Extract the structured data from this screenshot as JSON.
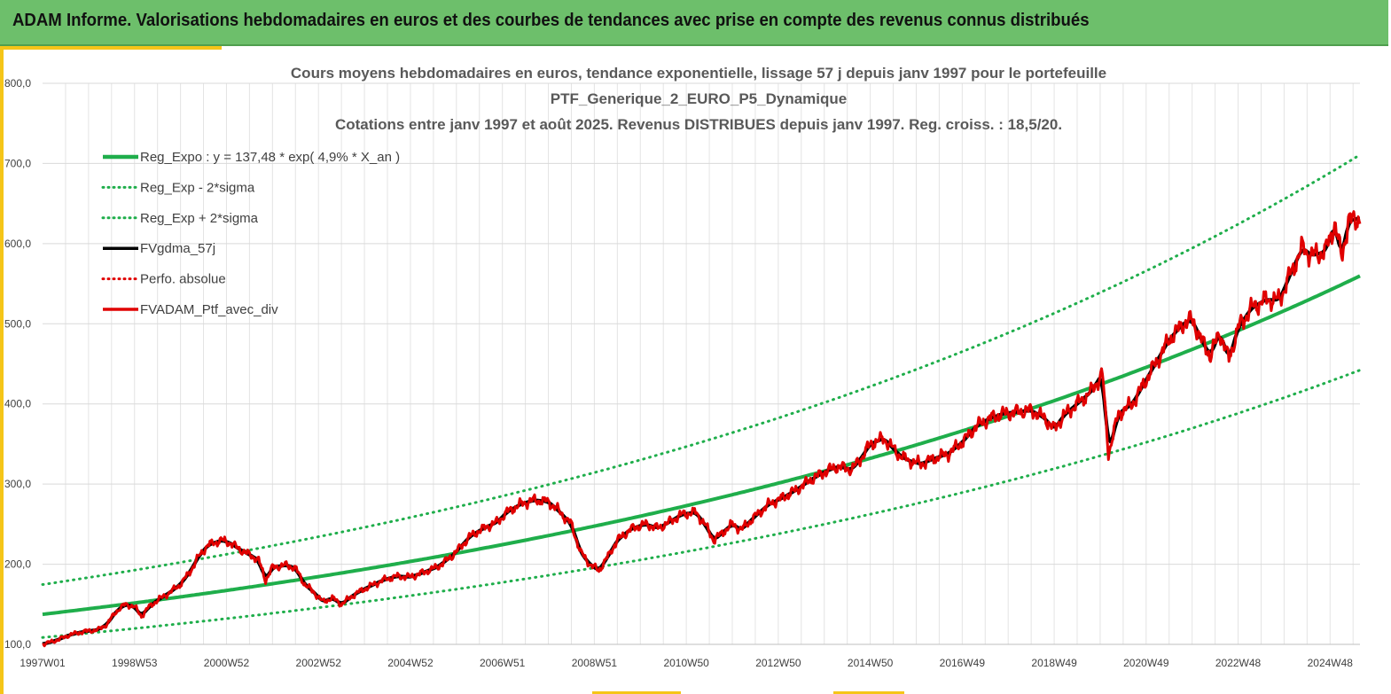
{
  "header": {
    "title": "ADAM Informe. Valorisations hebdomadaires en euros et des courbes de tendances avec prise en compte des revenus connus distribués"
  },
  "chart_data": {
    "type": "line",
    "title_lines": [
      "Cours moyens hebdomadaires  en euros, tendance exponentielle, lissage 57 j depuis janv 1997 pour le portefeuille",
      "PTF_Generique_2_EURO_P5_Dynamique",
      "Cotations entre janv 1997 et août 2025. Revenus DISTRIBUES depuis janv 1997. Reg. croiss. : 18,5/20."
    ],
    "xlabel": "",
    "ylabel": "",
    "xlim": [
      1997.0,
      2025.65
    ],
    "ylim": [
      100,
      800
    ],
    "y_ticks": [
      "100,0",
      "200,0",
      "300,0",
      "400,0",
      "500,0",
      "600,0",
      "700,0",
      "800,0"
    ],
    "x_ticks": [
      {
        "label": "1997W01",
        "x": 1997.0
      },
      {
        "label": "1998W53",
        "x": 1999.0
      },
      {
        "label": "2000W52",
        "x": 2001.0
      },
      {
        "label": "2002W52",
        "x": 2003.0
      },
      {
        "label": "2004W52",
        "x": 2005.0
      },
      {
        "label": "2006W51",
        "x": 2007.0
      },
      {
        "label": "2008W51",
        "x": 2009.0
      },
      {
        "label": "2010W50",
        "x": 2011.0
      },
      {
        "label": "2012W50",
        "x": 2013.0
      },
      {
        "label": "2014W50",
        "x": 2015.0
      },
      {
        "label": "2016W49",
        "x": 2017.0
      },
      {
        "label": "2018W49",
        "x": 2019.0
      },
      {
        "label": "2020W49",
        "x": 2021.0
      },
      {
        "label": "2022W48",
        "x": 2023.0
      },
      {
        "label": "2024W48",
        "x": 2025.0
      }
    ],
    "grid": true,
    "legend_position": "top-left",
    "regression": {
      "a": 137.48,
      "rate": 0.049,
      "sigma_factor": 0.79,
      "plus_factor": 1.27
    },
    "series": [
      {
        "name": "Reg_Expo : y = 137,48 * exp( 4,9% *  X_an )",
        "color": "#1fae4b",
        "style": "solid",
        "width": 4,
        "role": "regression"
      },
      {
        "name": "Reg_Exp - 2*sigma",
        "color": "#1fae4b",
        "style": "dotted",
        "width": 3,
        "role": "lower"
      },
      {
        "name": "Reg_Exp + 2*sigma",
        "color": "#1fae4b",
        "style": "dotted",
        "width": 3,
        "role": "upper"
      },
      {
        "name": "FVgdma_57j",
        "color": "#000000",
        "style": "solid",
        "width": 3,
        "role": "smooth"
      },
      {
        "name": "Perfo. absolue",
        "color": "#e00000",
        "style": "dotted",
        "width": 3,
        "role": "none"
      },
      {
        "name": "FVADAM_Ptf_avec_div",
        "color": "#e00000",
        "style": "solid",
        "width": 3,
        "role": "price"
      }
    ],
    "price_points": [
      [
        1997.0,
        100
      ],
      [
        1997.3,
        105
      ],
      [
        1997.6,
        112
      ],
      [
        1997.9,
        116
      ],
      [
        1998.2,
        118
      ],
      [
        1998.4,
        125
      ],
      [
        1998.6,
        141
      ],
      [
        1998.8,
        150
      ],
      [
        1999.0,
        147
      ],
      [
        1999.15,
        135
      ],
      [
        1999.3,
        146
      ],
      [
        1999.5,
        155
      ],
      [
        1999.8,
        166
      ],
      [
        2000.0,
        175
      ],
      [
        2000.2,
        190
      ],
      [
        2000.4,
        210
      ],
      [
        2000.6,
        224
      ],
      [
        2000.9,
        230
      ],
      [
        2001.1,
        226
      ],
      [
        2001.3,
        218
      ],
      [
        2001.5,
        212
      ],
      [
        2001.7,
        205
      ],
      [
        2001.85,
        180
      ],
      [
        2002.0,
        196
      ],
      [
        2002.3,
        199
      ],
      [
        2002.5,
        195
      ],
      [
        2002.7,
        175
      ],
      [
        2002.9,
        165
      ],
      [
        2003.1,
        153
      ],
      [
        2003.3,
        158
      ],
      [
        2003.5,
        150
      ],
      [
        2003.8,
        163
      ],
      [
        2004.1,
        172
      ],
      [
        2004.4,
        180
      ],
      [
        2004.7,
        185
      ],
      [
        2005.0,
        184
      ],
      [
        2005.3,
        190
      ],
      [
        2005.6,
        197
      ],
      [
        2005.9,
        210
      ],
      [
        2006.1,
        222
      ],
      [
        2006.3,
        235
      ],
      [
        2006.6,
        245
      ],
      [
        2006.9,
        253
      ],
      [
        2007.1,
        265
      ],
      [
        2007.4,
        275
      ],
      [
        2007.7,
        280
      ],
      [
        2008.0,
        278
      ],
      [
        2008.2,
        268
      ],
      [
        2008.5,
        250
      ],
      [
        2008.7,
        215
      ],
      [
        2008.9,
        200
      ],
      [
        2009.1,
        192
      ],
      [
        2009.3,
        210
      ],
      [
        2009.5,
        230
      ],
      [
        2009.8,
        244
      ],
      [
        2010.1,
        250
      ],
      [
        2010.4,
        245
      ],
      [
        2010.7,
        255
      ],
      [
        2010.9,
        262
      ],
      [
        2011.2,
        265
      ],
      [
        2011.4,
        250
      ],
      [
        2011.6,
        230
      ],
      [
        2011.8,
        240
      ],
      [
        2012.0,
        250
      ],
      [
        2012.2,
        243
      ],
      [
        2012.5,
        260
      ],
      [
        2012.8,
        275
      ],
      [
        2013.1,
        283
      ],
      [
        2013.4,
        293
      ],
      [
        2013.7,
        305
      ],
      [
        2014.0,
        315
      ],
      [
        2014.3,
        322
      ],
      [
        2014.6,
        318
      ],
      [
        2014.8,
        332
      ],
      [
        2015.0,
        350
      ],
      [
        2015.3,
        357
      ],
      [
        2015.6,
        338
      ],
      [
        2015.8,
        330
      ],
      [
        2016.1,
        325
      ],
      [
        2016.4,
        332
      ],
      [
        2016.7,
        338
      ],
      [
        2017.0,
        352
      ],
      [
        2017.3,
        372
      ],
      [
        2017.6,
        382
      ],
      [
        2017.9,
        388
      ],
      [
        2018.2,
        390
      ],
      [
        2018.5,
        392
      ],
      [
        2018.8,
        382
      ],
      [
        2019.0,
        368
      ],
      [
        2019.2,
        385
      ],
      [
        2019.5,
        400
      ],
      [
        2019.8,
        415
      ],
      [
        2020.05,
        438
      ],
      [
        2020.18,
        338
      ],
      [
        2020.4,
        388
      ],
      [
        2020.7,
        400
      ],
      [
        2020.9,
        420
      ],
      [
        2021.2,
        450
      ],
      [
        2021.5,
        480
      ],
      [
        2021.8,
        500
      ],
      [
        2022.0,
        505
      ],
      [
        2022.2,
        480
      ],
      [
        2022.4,
        460
      ],
      [
        2022.6,
        490
      ],
      [
        2022.8,
        455
      ],
      [
        2023.0,
        495
      ],
      [
        2023.3,
        520
      ],
      [
        2023.6,
        530
      ],
      [
        2023.9,
        530
      ],
      [
        2024.2,
        570
      ],
      [
        2024.4,
        595
      ],
      [
        2024.6,
        585
      ],
      [
        2024.9,
        590
      ],
      [
        2025.1,
        625
      ],
      [
        2025.25,
        583
      ],
      [
        2025.4,
        628
      ],
      [
        2025.65,
        632
      ]
    ]
  }
}
